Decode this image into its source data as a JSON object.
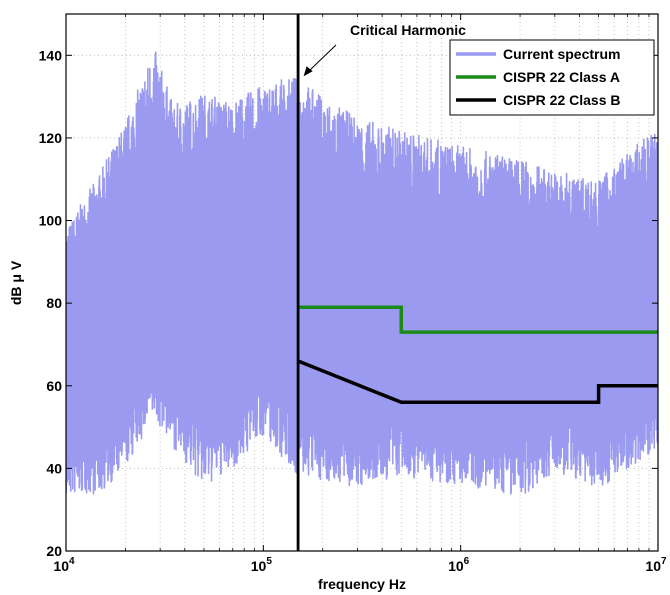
{
  "chart_data": {
    "type": "line",
    "xlabel": "frequency Hz",
    "ylabel": "dB μ V",
    "xscale": "log",
    "xlim": [
      10000,
      10000000
    ],
    "ylim": [
      20,
      150
    ],
    "xticks": [
      {
        "value": 10000,
        "base": "10",
        "exp": "4"
      },
      {
        "value": 100000,
        "base": "10",
        "exp": "5"
      },
      {
        "value": 1000000,
        "base": "10",
        "exp": "6"
      },
      {
        "value": 10000000,
        "base": "10",
        "exp": "7"
      }
    ],
    "yticks": [
      20,
      40,
      60,
      80,
      100,
      120,
      140
    ],
    "grid": true,
    "legend_position": "top-right",
    "series": [
      {
        "name": "Current spectrum",
        "color": "#9a9af0",
        "kind": "spectrum-envelope",
        "envelope": {
          "x": [
            10000,
            15000,
            20000,
            28000,
            35000,
            50000,
            70000,
            100000,
            150000,
            200000,
            300000,
            500000,
            1000000,
            2000000,
            3000000,
            5000000,
            10000000
          ],
          "upper": [
            98,
            112,
            124,
            142,
            128,
            131,
            129,
            133,
            135,
            130,
            125,
            122,
            118,
            115,
            112,
            110,
            123
          ],
          "lower": [
            33,
            34,
            40,
            52,
            45,
            35,
            40,
            48,
            38,
            37,
            35,
            38,
            36,
            33,
            39,
            35,
            45
          ]
        }
      },
      {
        "name": "CISPR 22 Class A",
        "color": "#1a8a1a",
        "x": [
          150000,
          500000,
          500000,
          10000000
        ],
        "y": [
          79,
          79,
          73,
          73
        ]
      },
      {
        "name": "CISPR 22 Class B",
        "color": "#000000",
        "x": [
          150000,
          500000,
          5000000,
          5000000,
          10000000
        ],
        "y": [
          66,
          56,
          56,
          60,
          60
        ]
      }
    ],
    "vline": {
      "x": 150000,
      "color": "#000000"
    },
    "annotation": {
      "text": "Critical Harmonic",
      "x": 160000,
      "y": 133
    }
  }
}
